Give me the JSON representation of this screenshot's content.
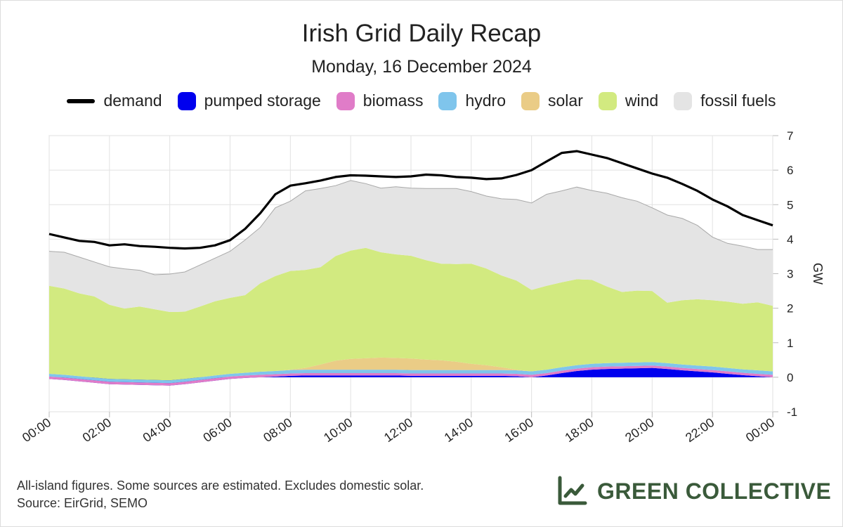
{
  "chart_data": {
    "type": "area",
    "title": "Irish Grid Daily Recap",
    "subtitle": "Monday, 16 December 2024",
    "ylabel": "GW",
    "xlabel": "",
    "ylim": [
      -1,
      7
    ],
    "yticks": [
      "7",
      "6",
      "5",
      "4",
      "3",
      "2",
      "1",
      "0",
      "-1"
    ],
    "xlim": [
      0,
      24
    ],
    "xticks": [
      "00:00",
      "02:00",
      "04:00",
      "06:00",
      "08:00",
      "10:00",
      "12:00",
      "14:00",
      "16:00",
      "18:00",
      "20:00",
      "22:00",
      "00:00"
    ],
    "grid": true,
    "legend_position": "top",
    "x": [
      0,
      0.5,
      1,
      1.5,
      2,
      2.5,
      3,
      3.5,
      4,
      4.5,
      5,
      5.5,
      6,
      6.5,
      7,
      7.5,
      8,
      8.5,
      9,
      9.5,
      10,
      10.5,
      11,
      11.5,
      12,
      12.5,
      13,
      13.5,
      14,
      14.5,
      15,
      15.5,
      16,
      16.5,
      17,
      17.5,
      18,
      18.5,
      19,
      19.5,
      20,
      20.5,
      21,
      21.5,
      22,
      22.5,
      23,
      23.5,
      24
    ],
    "series": [
      {
        "name": "pumped storage",
        "color": "#0000ee",
        "values": [
          -0.05,
          -0.08,
          -0.12,
          -0.16,
          -0.2,
          -0.21,
          -0.22,
          -0.23,
          -0.24,
          -0.2,
          -0.15,
          -0.1,
          -0.05,
          -0.02,
          0,
          0.02,
          0.04,
          0.05,
          0.05,
          0.05,
          0.05,
          0.05,
          0.05,
          0.05,
          0.04,
          0.04,
          0.04,
          0.04,
          0.04,
          0.04,
          0.04,
          0.03,
          0,
          0.05,
          0.12,
          0.18,
          0.22,
          0.24,
          0.25,
          0.26,
          0.27,
          0.24,
          0.2,
          0.17,
          0.14,
          0.1,
          0.06,
          0.03,
          0
        ]
      },
      {
        "name": "biomass",
        "color": "#e07cc8",
        "values": [
          0.07,
          0.07,
          0.07,
          0.07,
          0.07,
          0.07,
          0.07,
          0.07,
          0.07,
          0.07,
          0.07,
          0.07,
          0.07,
          0.07,
          0.07,
          0.07,
          0.07,
          0.07,
          0.07,
          0.07,
          0.07,
          0.07,
          0.07,
          0.07,
          0.07,
          0.07,
          0.07,
          0.07,
          0.07,
          0.07,
          0.07,
          0.07,
          0.07,
          0.07,
          0.07,
          0.07,
          0.07,
          0.07,
          0.07,
          0.07,
          0.07,
          0.07,
          0.07,
          0.07,
          0.07,
          0.07,
          0.07,
          0.07,
          0.07
        ]
      },
      {
        "name": "hydro",
        "color": "#7fc5ec",
        "values": [
          0.08,
          0.08,
          0.08,
          0.08,
          0.08,
          0.08,
          0.08,
          0.08,
          0.08,
          0.08,
          0.08,
          0.08,
          0.08,
          0.08,
          0.09,
          0.09,
          0.1,
          0.1,
          0.1,
          0.1,
          0.1,
          0.1,
          0.1,
          0.1,
          0.1,
          0.1,
          0.1,
          0.1,
          0.1,
          0.1,
          0.1,
          0.1,
          0.1,
          0.1,
          0.1,
          0.1,
          0.1,
          0.1,
          0.1,
          0.1,
          0.1,
          0.1,
          0.1,
          0.1,
          0.1,
          0.1,
          0.1,
          0.1,
          0.1
        ]
      },
      {
        "name": "solar",
        "color": "#eacc86",
        "values": [
          0,
          0,
          0,
          0,
          0,
          0,
          0,
          0,
          0,
          0,
          0,
          0,
          0,
          0,
          0,
          0,
          0.01,
          0.05,
          0.15,
          0.26,
          0.31,
          0.33,
          0.35,
          0.34,
          0.33,
          0.3,
          0.28,
          0.24,
          0.18,
          0.14,
          0.08,
          0.02,
          0,
          0,
          0,
          0,
          0,
          0,
          0,
          0,
          0,
          0,
          0,
          0,
          0,
          0,
          0,
          0,
          0
        ]
      },
      {
        "name": "wind",
        "color": "#d2ea80",
        "values": [
          2.55,
          2.5,
          2.4,
          2.35,
          2.15,
          2.05,
          2.12,
          2.05,
          1.98,
          1.95,
          2.05,
          2.15,
          2.2,
          2.25,
          2.56,
          2.75,
          2.86,
          2.84,
          2.82,
          3.03,
          3.14,
          3.2,
          3.05,
          3.0,
          2.98,
          2.88,
          2.8,
          2.83,
          2.9,
          2.8,
          2.66,
          2.58,
          2.36,
          2.43,
          2.46,
          2.49,
          2.43,
          2.22,
          2.05,
          2.08,
          2.06,
          1.75,
          1.86,
          1.92,
          1.92,
          1.92,
          1.9,
          1.97,
          1.9
        ]
      },
      {
        "name": "fossil fuels",
        "color": "#e4e4e4",
        "values": [
          1.0,
          1.05,
          1.05,
          1.0,
          1.1,
          1.15,
          1.05,
          1.0,
          1.1,
          1.15,
          1.2,
          1.25,
          1.35,
          1.6,
          1.62,
          1.98,
          2.02,
          2.29,
          2.28,
          2.04,
          2.03,
          1.86,
          1.86,
          1.96,
          1.96,
          2.08,
          2.18,
          2.19,
          2.09,
          2.1,
          2.22,
          2.35,
          2.52,
          2.65,
          2.65,
          2.67,
          2.59,
          2.7,
          2.73,
          2.59,
          2.41,
          2.54,
          2.37,
          2.14,
          1.83,
          1.69,
          1.67,
          1.53,
          1.63
        ]
      },
      {
        "name": "demand",
        "color": "#000000",
        "values": [
          4.15,
          4.05,
          3.95,
          3.92,
          3.82,
          3.85,
          3.8,
          3.78,
          3.75,
          3.73,
          3.75,
          3.82,
          3.97,
          4.3,
          4.75,
          5.3,
          5.55,
          5.62,
          5.7,
          5.8,
          5.85,
          5.84,
          5.82,
          5.8,
          5.82,
          5.87,
          5.85,
          5.8,
          5.78,
          5.74,
          5.76,
          5.86,
          6.0,
          6.25,
          6.5,
          6.55,
          6.45,
          6.35,
          6.2,
          6.05,
          5.9,
          5.78,
          5.6,
          5.4,
          5.15,
          4.95,
          4.7,
          4.55,
          4.4
        ]
      }
    ],
    "legend": [
      {
        "name": "demand",
        "kind": "line",
        "color": "#000000"
      },
      {
        "name": "pumped storage",
        "kind": "box",
        "color": "#0000ee"
      },
      {
        "name": "biomass",
        "kind": "box",
        "color": "#e07cc8"
      },
      {
        "name": "hydro",
        "kind": "box",
        "color": "#7fc5ec"
      },
      {
        "name": "solar",
        "kind": "box",
        "color": "#eacc86"
      },
      {
        "name": "wind",
        "kind": "box",
        "color": "#d2ea80"
      },
      {
        "name": "fossil fuels",
        "kind": "box",
        "color": "#e4e4e4"
      }
    ]
  },
  "footer": {
    "note": "All-island figures. Some sources are estimated. Excludes domestic solar.",
    "source": "Source: EirGrid, SEMO",
    "brand": "GREEN COLLECTIVE",
    "brand_icon": "line-chart-icon",
    "brand_color": "#3a5a3a"
  }
}
